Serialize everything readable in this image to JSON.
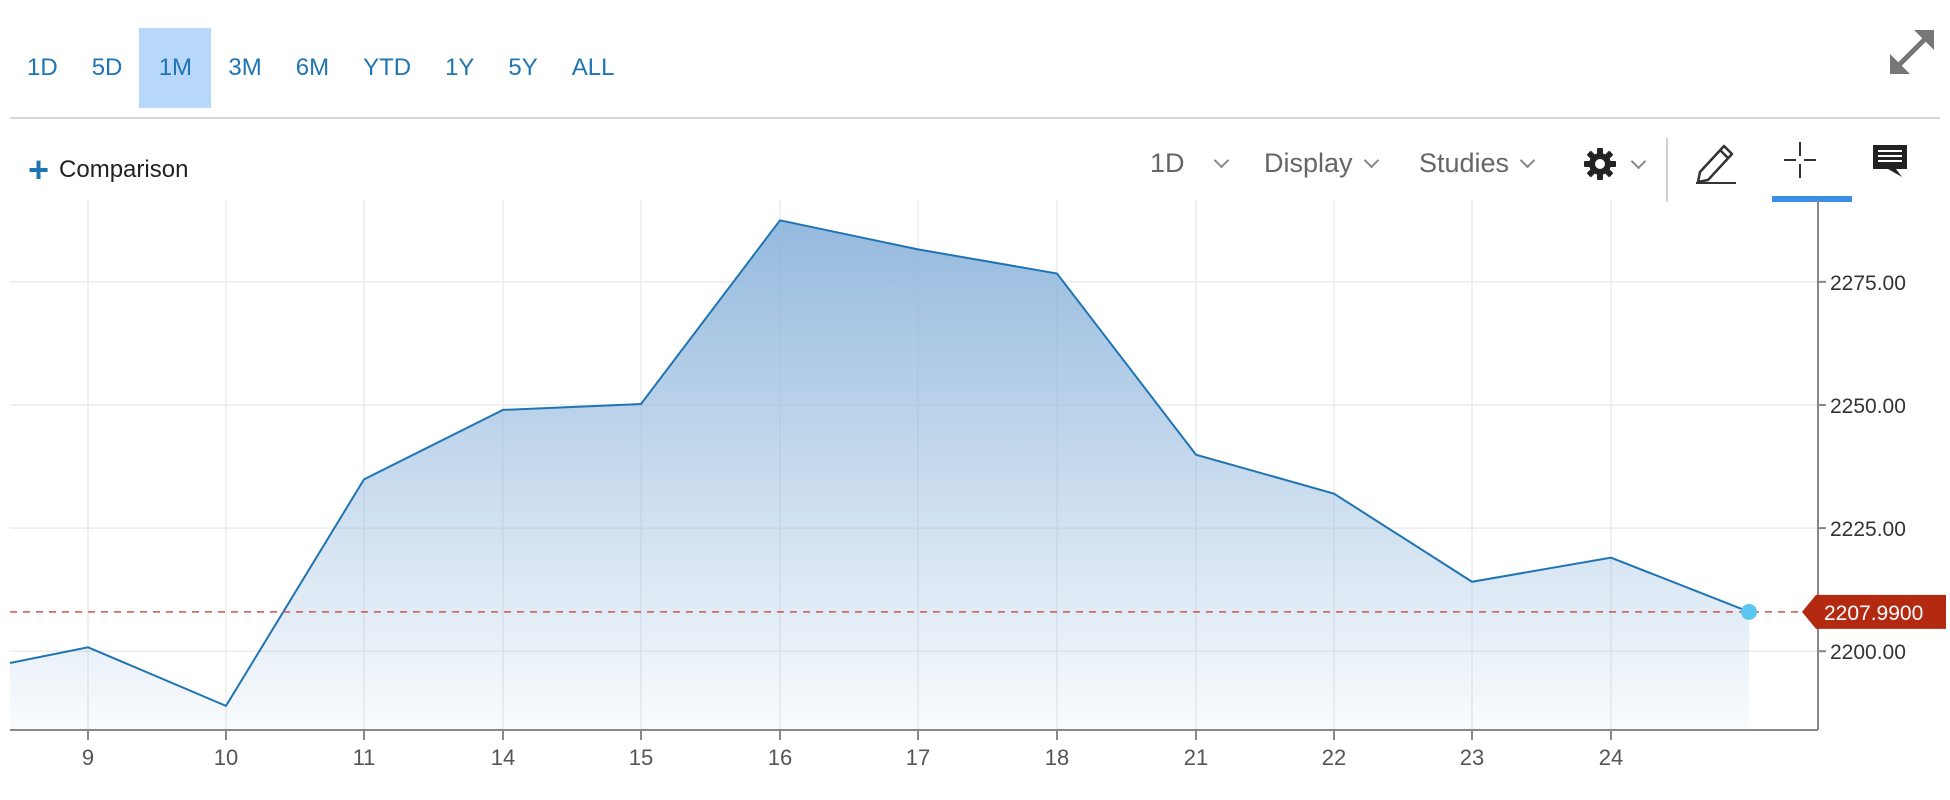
{
  "range_buttons": [
    {
      "label": "1D",
      "active": false
    },
    {
      "label": "5D",
      "active": false
    },
    {
      "label": "1M",
      "active": true
    },
    {
      "label": "3M",
      "active": false
    },
    {
      "label": "6M",
      "active": false
    },
    {
      "label": "YTD",
      "active": false
    },
    {
      "label": "1Y",
      "active": false
    },
    {
      "label": "5Y",
      "active": false
    },
    {
      "label": "ALL",
      "active": false
    }
  ],
  "toolbar": {
    "comparison_plus": "+",
    "comparison_label": "Comparison",
    "interval_label": "1D",
    "display_label": "Display",
    "studies_label": "Studies",
    "icons": [
      "expand-icon",
      "gear-icon",
      "pencil-icon",
      "crosshair-icon",
      "comment-icon"
    ]
  },
  "colors": {
    "accent": "#1f74b4",
    "active_range_bg": "#b8d8fb",
    "line": "#1f74b4",
    "area_top": "#8fb6dc",
    "current_marker": "#5bc6ee",
    "price_tag": "#b32a10",
    "price_line": "#c8584a"
  },
  "chart_data": {
    "type": "area",
    "categories": [
      "9",
      "10",
      "11",
      "14",
      "15",
      "16",
      "17",
      "18",
      "21",
      "22",
      "23",
      "24"
    ],
    "series": [
      {
        "x": [
          "",
          "9",
          "10",
          "11",
          "14",
          "15",
          "16",
          "17",
          "18",
          "21",
          "22",
          "23",
          "24",
          ""
        ],
        "values": [
          2197.6,
          2200.8,
          2188.9,
          2234.9,
          2249.0,
          2250.2,
          2287.5,
          2281.6,
          2276.7,
          2239.9,
          2232.0,
          2214.1,
          2219.0,
          2207.99
        ]
      }
    ],
    "y_ticks": [
      "2200.00",
      "2225.00",
      "2250.00",
      "2275.00"
    ],
    "ylim": [
      2184.0,
      2290.0
    ],
    "current_price_label": "2207.9900",
    "current_value": 2207.99,
    "grid": true
  }
}
